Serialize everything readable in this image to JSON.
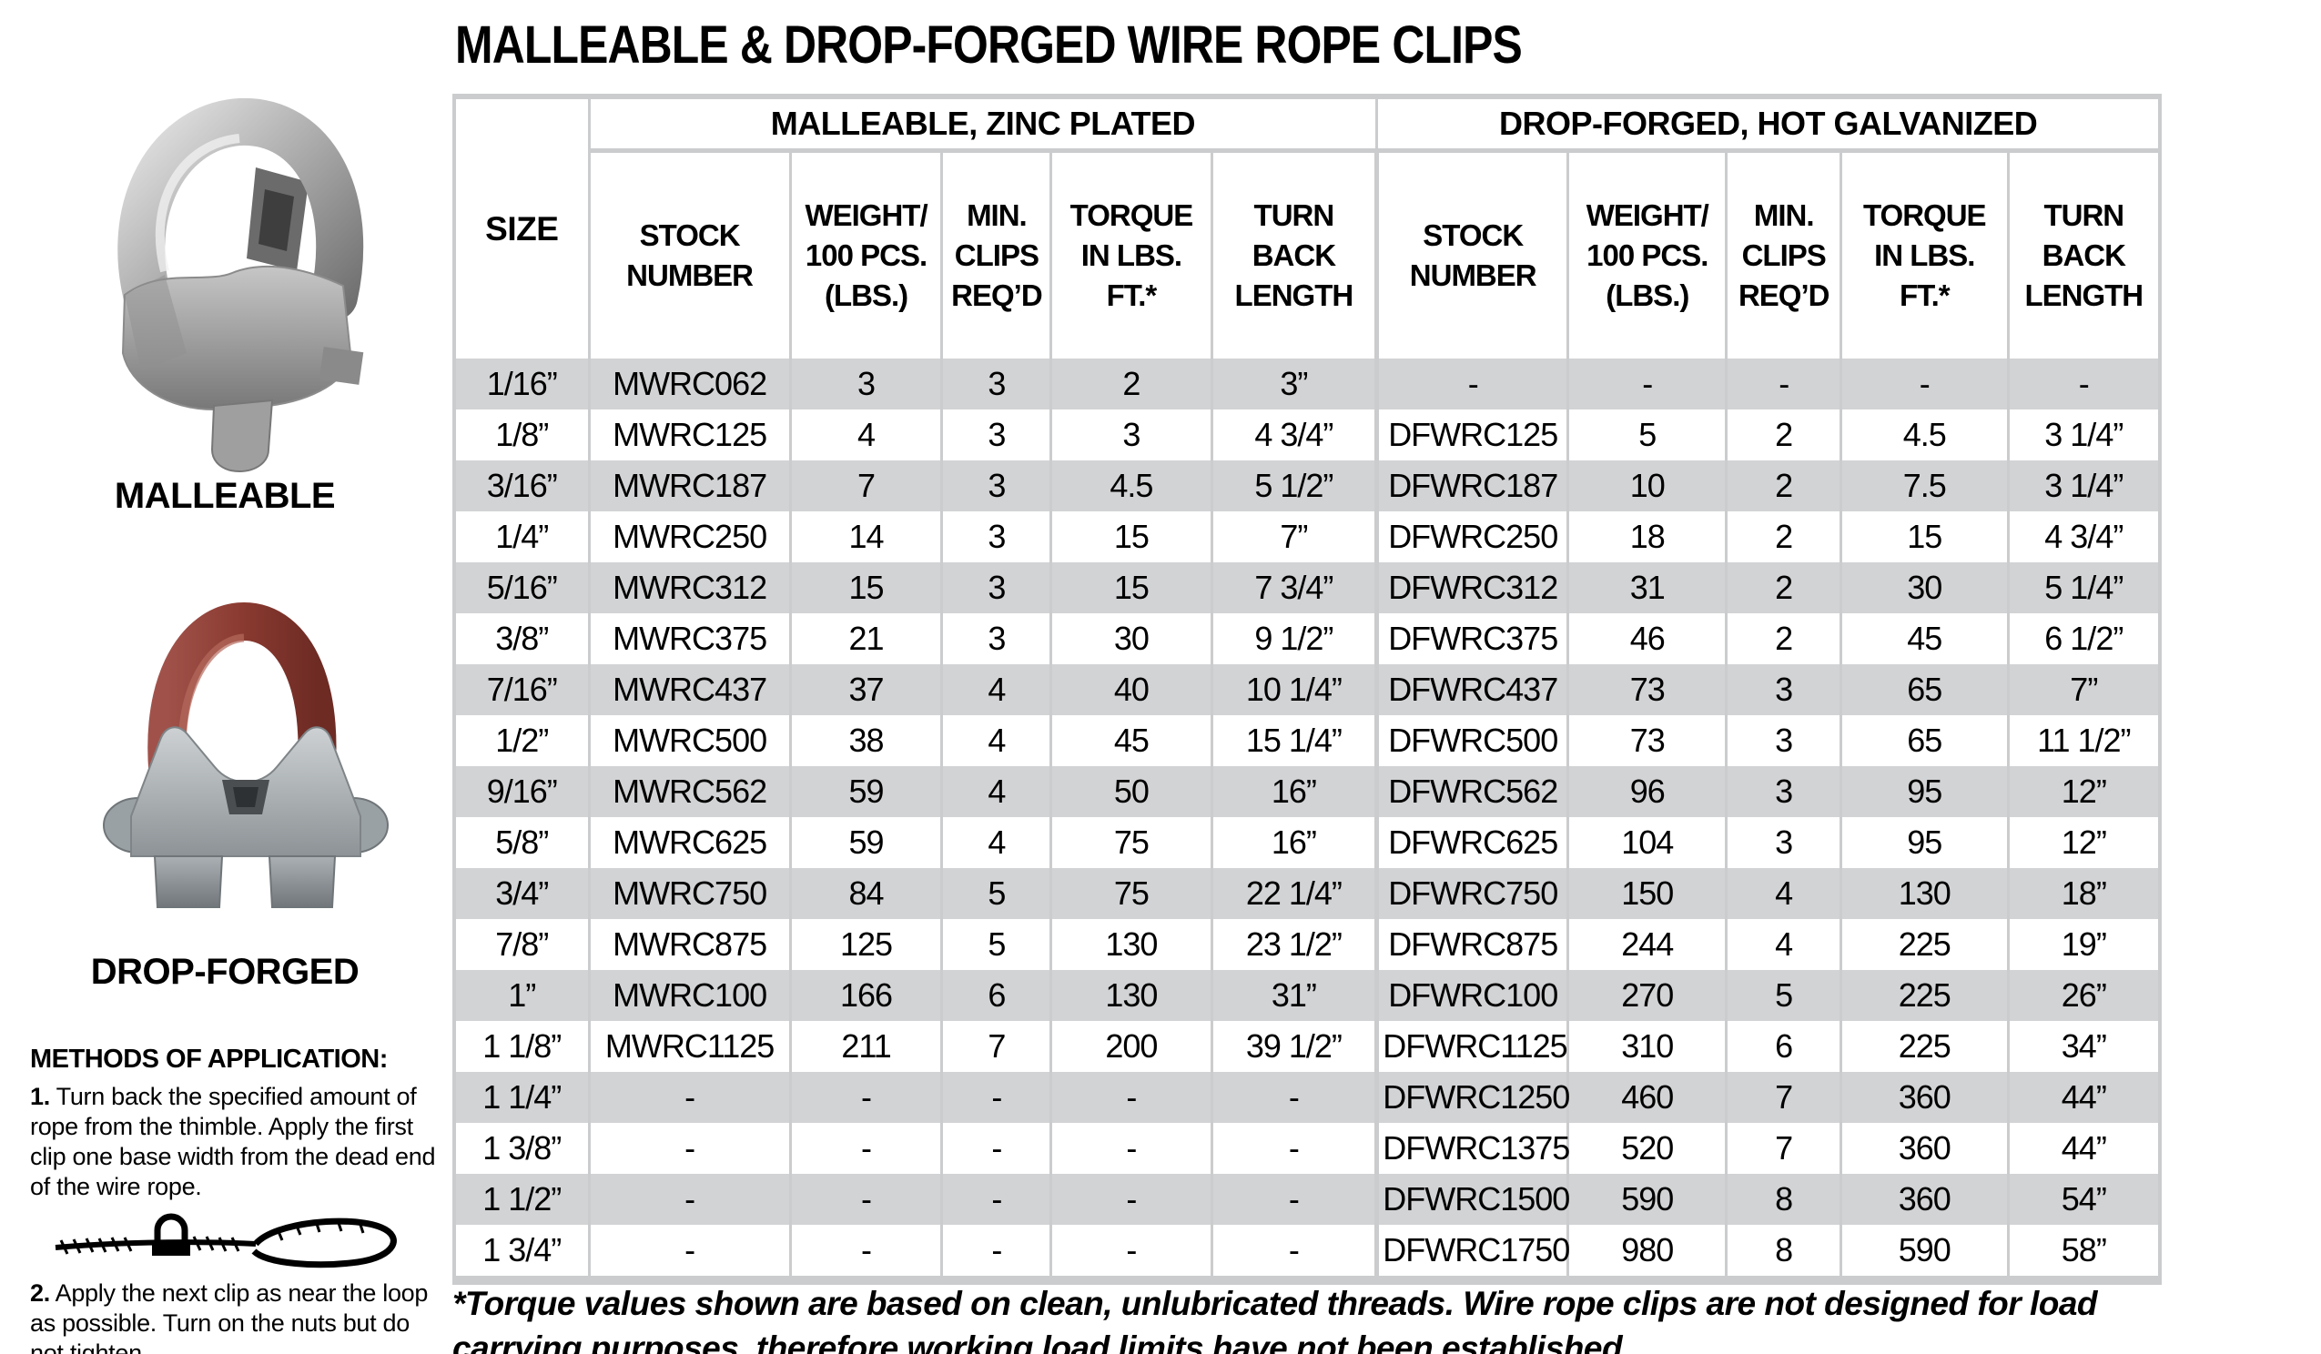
{
  "title": "MALLEABLE & DROP-FORGED WIRE ROPE CLIPS",
  "sidebar": {
    "malleable_label": "MALLEABLE",
    "drop_forged_label": "DROP-FORGED",
    "methods_heading": "METHODS OF APPLICATION:",
    "method_1_number": "1.",
    "method_1_text": " Turn back the specified amount of rope from the thimble. Apply the first clip one base width from the dead end of the wire rope.",
    "method_2_number": "2.",
    "method_2_text": " Apply the next clip as near the loop as possible. Turn on the nuts but do not tighten."
  },
  "table": {
    "size_header": "SIZE",
    "group_headers": [
      "MALLEABLE, ZINC PLATED",
      "DROP-FORGED, HOT GALVANIZED"
    ],
    "column_headers": [
      [
        "STOCK",
        "NUMBER"
      ],
      [
        "WEIGHT/",
        "100 PCS.",
        "(LBS.)"
      ],
      [
        "MIN.",
        "CLIPS",
        "REQ’D"
      ],
      [
        "TORQUE",
        "IN LBS.",
        "FT.*"
      ],
      [
        "TURN",
        "BACK",
        "LENGTH"
      ],
      [
        "STOCK",
        "NUMBER"
      ],
      [
        "WEIGHT/",
        "100 PCS.",
        "(LBS.)"
      ],
      [
        "MIN.",
        "CLIPS",
        "REQ’D"
      ],
      [
        "TORQUE",
        "IN LBS.",
        "FT.*"
      ],
      [
        "TURN",
        "BACK",
        "LENGTH"
      ]
    ],
    "rows": [
      [
        "1/16”",
        "MWRC062",
        "3",
        "3",
        "2",
        "3”",
        "-",
        "-",
        "-",
        "-",
        "-"
      ],
      [
        "1/8”",
        "MWRC125",
        "4",
        "3",
        "3",
        "4 3/4”",
        "DFWRC125",
        "5",
        "2",
        "4.5",
        "3 1/4”"
      ],
      [
        "3/16”",
        "MWRC187",
        "7",
        "3",
        "4.5",
        "5 1/2”",
        "DFWRC187",
        "10",
        "2",
        "7.5",
        "3 1/4”"
      ],
      [
        "1/4”",
        "MWRC250",
        "14",
        "3",
        "15",
        "7”",
        "DFWRC250",
        "18",
        "2",
        "15",
        "4 3/4”"
      ],
      [
        "5/16”",
        "MWRC312",
        "15",
        "3",
        "15",
        "7 3/4”",
        "DFWRC312",
        "31",
        "2",
        "30",
        "5 1/4”"
      ],
      [
        "3/8”",
        "MWRC375",
        "21",
        "3",
        "30",
        "9 1/2”",
        "DFWRC375",
        "46",
        "2",
        "45",
        "6 1/2”"
      ],
      [
        "7/16”",
        "MWRC437",
        "37",
        "4",
        "40",
        "10 1/4”",
        "DFWRC437",
        "73",
        "3",
        "65",
        "7”"
      ],
      [
        "1/2”",
        "MWRC500",
        "38",
        "4",
        "45",
        "15 1/4”",
        "DFWRC500",
        "73",
        "3",
        "65",
        "11 1/2”"
      ],
      [
        "9/16”",
        "MWRC562",
        "59",
        "4",
        "50",
        "16”",
        "DFWRC562",
        "96",
        "3",
        "95",
        "12”"
      ],
      [
        "5/8”",
        "MWRC625",
        "59",
        "4",
        "75",
        "16”",
        "DFWRC625",
        "104",
        "3",
        "95",
        "12”"
      ],
      [
        "3/4”",
        "MWRC750",
        "84",
        "5",
        "75",
        "22 1/4”",
        "DFWRC750",
        "150",
        "4",
        "130",
        "18”"
      ],
      [
        "7/8”",
        "MWRC875",
        "125",
        "5",
        "130",
        "23 1/2”",
        "DFWRC875",
        "244",
        "4",
        "225",
        "19”"
      ],
      [
        "1”",
        "MWRC100",
        "166",
        "6",
        "130",
        "31”",
        "DFWRC100",
        "270",
        "5",
        "225",
        "26”"
      ],
      [
        "1 1/8”",
        "MWRC1125",
        "211",
        "7",
        "200",
        "39 1/2”",
        "DFWRC1125",
        "310",
        "6",
        "225",
        "34”"
      ],
      [
        "1 1/4”",
        "-",
        "-",
        "-",
        "-",
        "-",
        "DFWRC1250",
        "460",
        "7",
        "360",
        "44”"
      ],
      [
        "1 3/8”",
        "-",
        "-",
        "-",
        "-",
        "-",
        "DFWRC1375",
        "520",
        "7",
        "360",
        "44”"
      ],
      [
        "1 1/2”",
        "-",
        "-",
        "-",
        "-",
        "-",
        "DFWRC1500",
        "590",
        "8",
        "360",
        "54”"
      ],
      [
        "1 3/4”",
        "-",
        "-",
        "-",
        "-",
        "-",
        "DFWRC1750",
        "980",
        "8",
        "590",
        "58”"
      ]
    ]
  },
  "footnote": "*Torque values shown are based on clean, unlubricated threads. Wire rope clips are not designed for load carrying purposes, therefore working load limits have not been established.",
  "colors": {
    "row_alt": "#d2d3d5",
    "border": "#cbccce",
    "ubolt_red": "#8a3a30",
    "steel_gray": "#a8adb0"
  }
}
